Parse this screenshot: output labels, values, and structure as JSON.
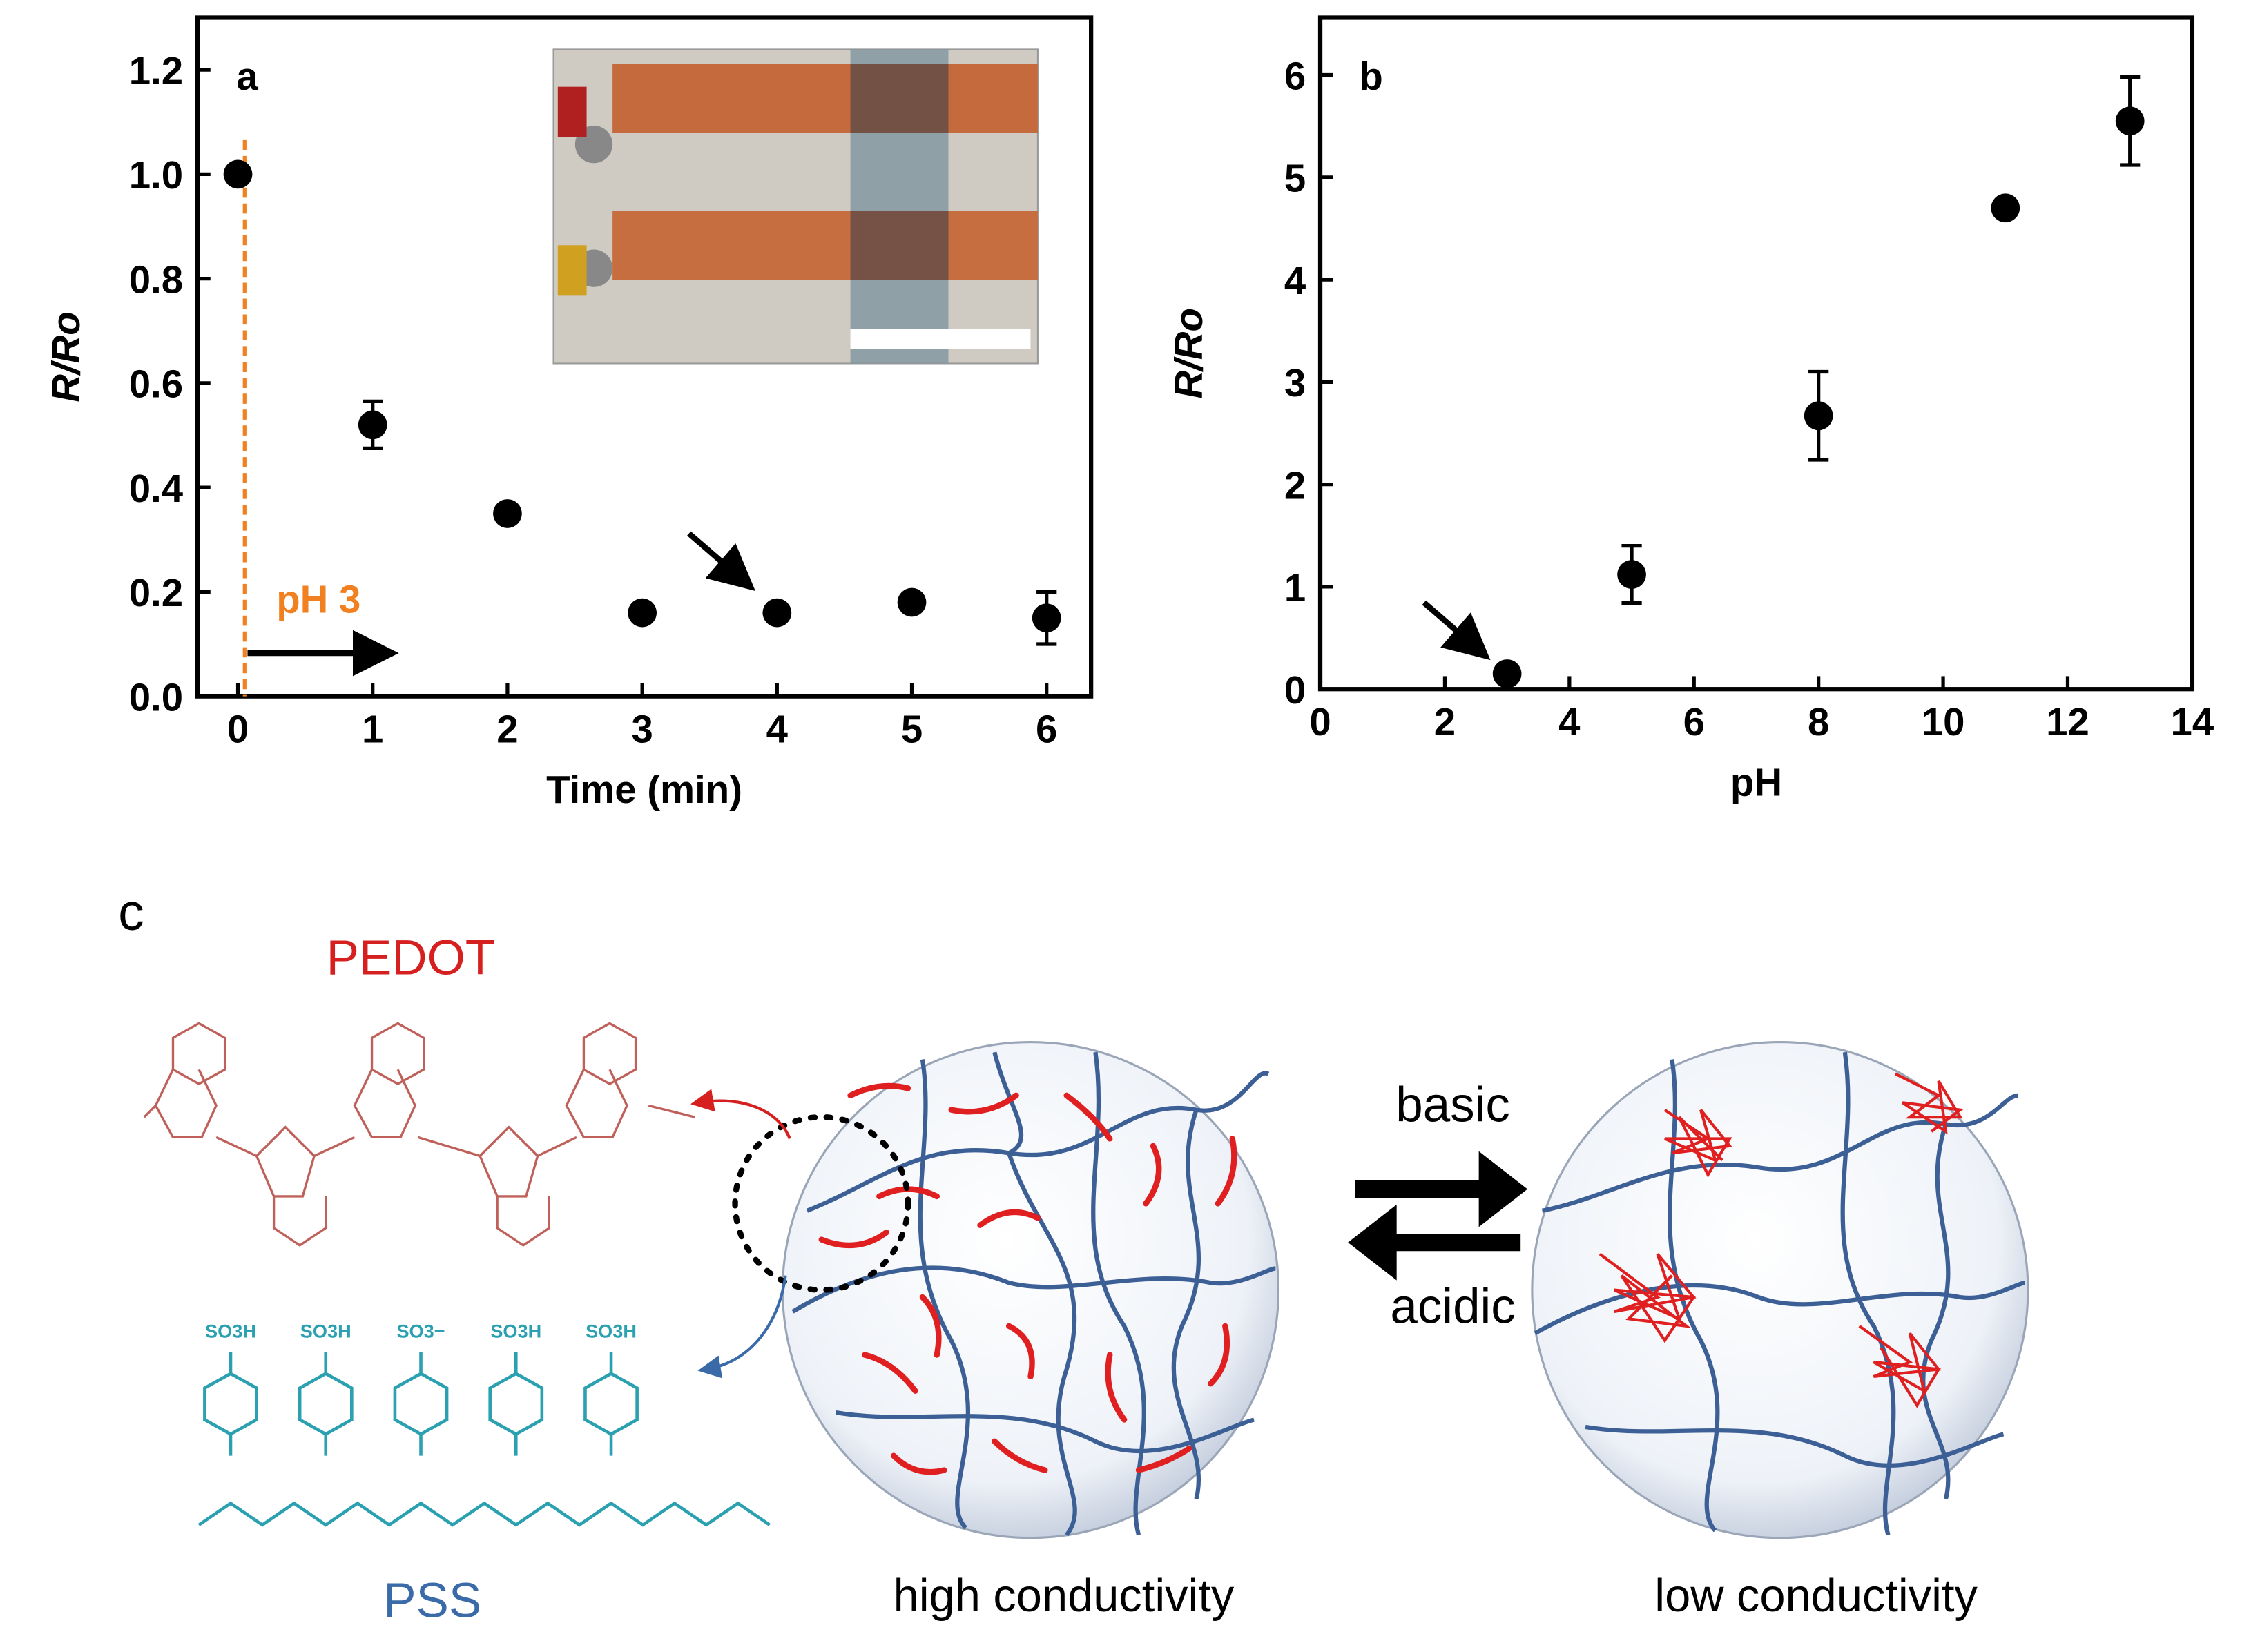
{
  "chart_data": [
    {
      "type": "scatter",
      "panel": "a",
      "xlabel": "Time (min)",
      "ylabel": "R/Ro",
      "x": [
        0,
        1,
        2,
        3,
        4,
        5,
        6
      ],
      "values": [
        1.0,
        0.52,
        0.35,
        0.16,
        0.16,
        0.18,
        0.15
      ],
      "errors": [
        0,
        0.045,
        0,
        0,
        0,
        0,
        0.05
      ],
      "color": "#000000",
      "xlim": [
        -0.3,
        6.33
      ],
      "ylim": [
        0,
        1.3
      ],
      "xticks": [
        0,
        1,
        2,
        3,
        4,
        5,
        6
      ],
      "yticks": [
        {
          "value": 0,
          "label": "0.0"
        },
        0.2,
        0.4,
        0.6,
        0.8,
        {
          "value": 1,
          "label": "1.0"
        },
        1.2
      ],
      "annotation": "pH 3",
      "annotation_color": "#f08020",
      "vline_x": 0.05
    },
    {
      "type": "scatter",
      "panel": "b",
      "xlabel": "pH",
      "ylabel": "R/Ro",
      "x": [
        3,
        5,
        8,
        11,
        13
      ],
      "values": [
        0.15,
        1.12,
        2.67,
        4.7,
        5.55
      ],
      "errors": [
        0,
        0.28,
        0.43,
        0,
        0.43
      ],
      "color": "#000000",
      "xlim": [
        0,
        14
      ],
      "ylim": [
        0,
        6.56
      ],
      "xticks": [
        0,
        2,
        4,
        6,
        8,
        10,
        12,
        14
      ],
      "yticks": [
        0,
        1,
        2,
        3,
        4,
        5,
        6
      ]
    }
  ],
  "diagram": {
    "panel": "c",
    "pedot": "PEDOT",
    "pss": "PSS",
    "pss_groups": [
      "SO3H",
      "SO3H",
      "SO3−",
      "SO3H",
      "SO3H"
    ],
    "forward": "basic",
    "backward": "acidic",
    "left_state": "high conductivity",
    "right_state": "low conductivity"
  }
}
